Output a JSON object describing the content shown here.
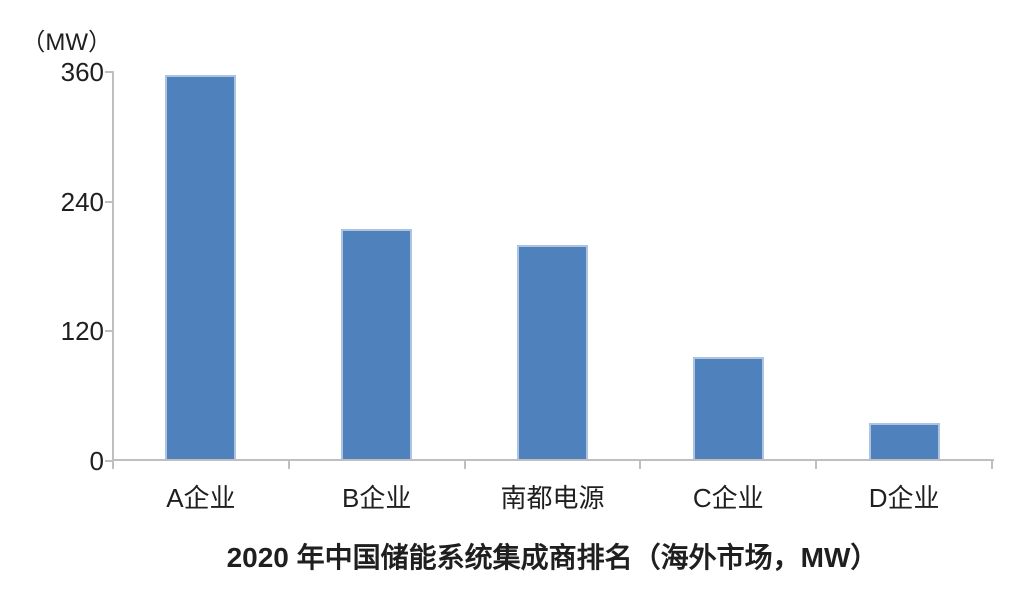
{
  "chart_data": {
    "type": "bar",
    "title": "2020 年中国储能系统集成商排名（海外市场，MW）",
    "unit_label": "（MW）",
    "categories": [
      "A企业",
      "B企业",
      "南都电源",
      "C企业",
      "D企业"
    ],
    "values": [
      357,
      215,
      200,
      96,
      35
    ],
    "ylim": [
      0,
      360
    ],
    "yticks": [
      0,
      120,
      240,
      360
    ],
    "ytick_labels": [
      "0",
      "120",
      "240",
      "360"
    ],
    "xlabel": "",
    "ylabel": "",
    "grid": false,
    "legend_position": "none",
    "colors": {
      "bar_fill": "#4f81bd",
      "bar_border": "#abc4e2",
      "axis": "#bfbfbf",
      "text": "#1f1f1f"
    }
  }
}
